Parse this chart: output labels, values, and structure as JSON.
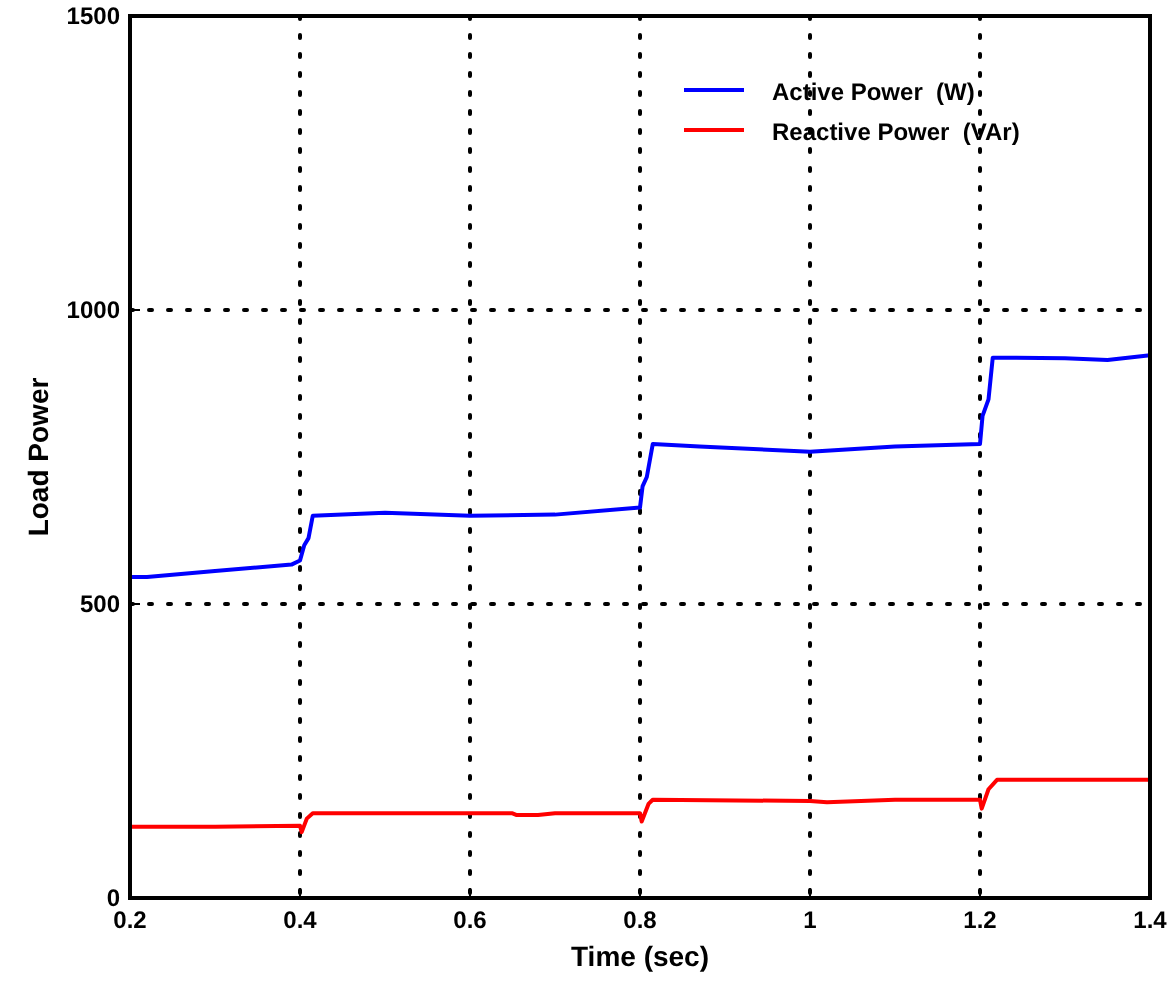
{
  "chart_data": {
    "type": "line",
    "xlabel": "Time (sec)",
    "ylabel": "Load Power",
    "xlim": [
      0.2,
      1.4
    ],
    "ylim": [
      0,
      1500
    ],
    "xticks": [
      0.2,
      0.4,
      0.6,
      0.8,
      1,
      1.2,
      1.4
    ],
    "yticks": [
      0,
      500,
      1000,
      1500
    ],
    "grid": true,
    "legend": "top right",
    "line_style": "solid",
    "series": [
      {
        "name": "Active Power  (W)",
        "color": "#0000ff",
        "x": [
          0.2,
          0.22,
          0.3,
          0.39,
          0.4,
          0.405,
          0.41,
          0.415,
          0.5,
          0.6,
          0.7,
          0.8,
          0.803,
          0.808,
          0.815,
          0.87,
          1.0,
          1.1,
          1.2,
          1.203,
          1.21,
          1.215,
          1.3,
          1.35,
          1.4
        ],
        "values": [
          546,
          546,
          556,
          567,
          574,
          600,
          612,
          650,
          655,
          650,
          652,
          664,
          700,
          716,
          772,
          768,
          759,
          768,
          772,
          820,
          848,
          919,
          918,
          915,
          923
        ]
      },
      {
        "name": "Reactive Power  (VAr)",
        "color": "#ff0000",
        "x": [
          0.2,
          0.3,
          0.4,
          0.402,
          0.408,
          0.415,
          0.5,
          0.65,
          0.655,
          0.68,
          0.7,
          0.8,
          0.802,
          0.81,
          0.815,
          1.0,
          1.02,
          1.1,
          1.2,
          1.202,
          1.21,
          1.22,
          1.3,
          1.4
        ],
        "values": [
          121,
          121,
          123,
          112,
          135,
          144,
          144,
          144,
          141,
          141,
          144,
          144,
          130,
          160,
          167,
          165,
          163,
          167,
          167,
          152,
          185,
          201,
          201,
          201
        ]
      }
    ]
  }
}
